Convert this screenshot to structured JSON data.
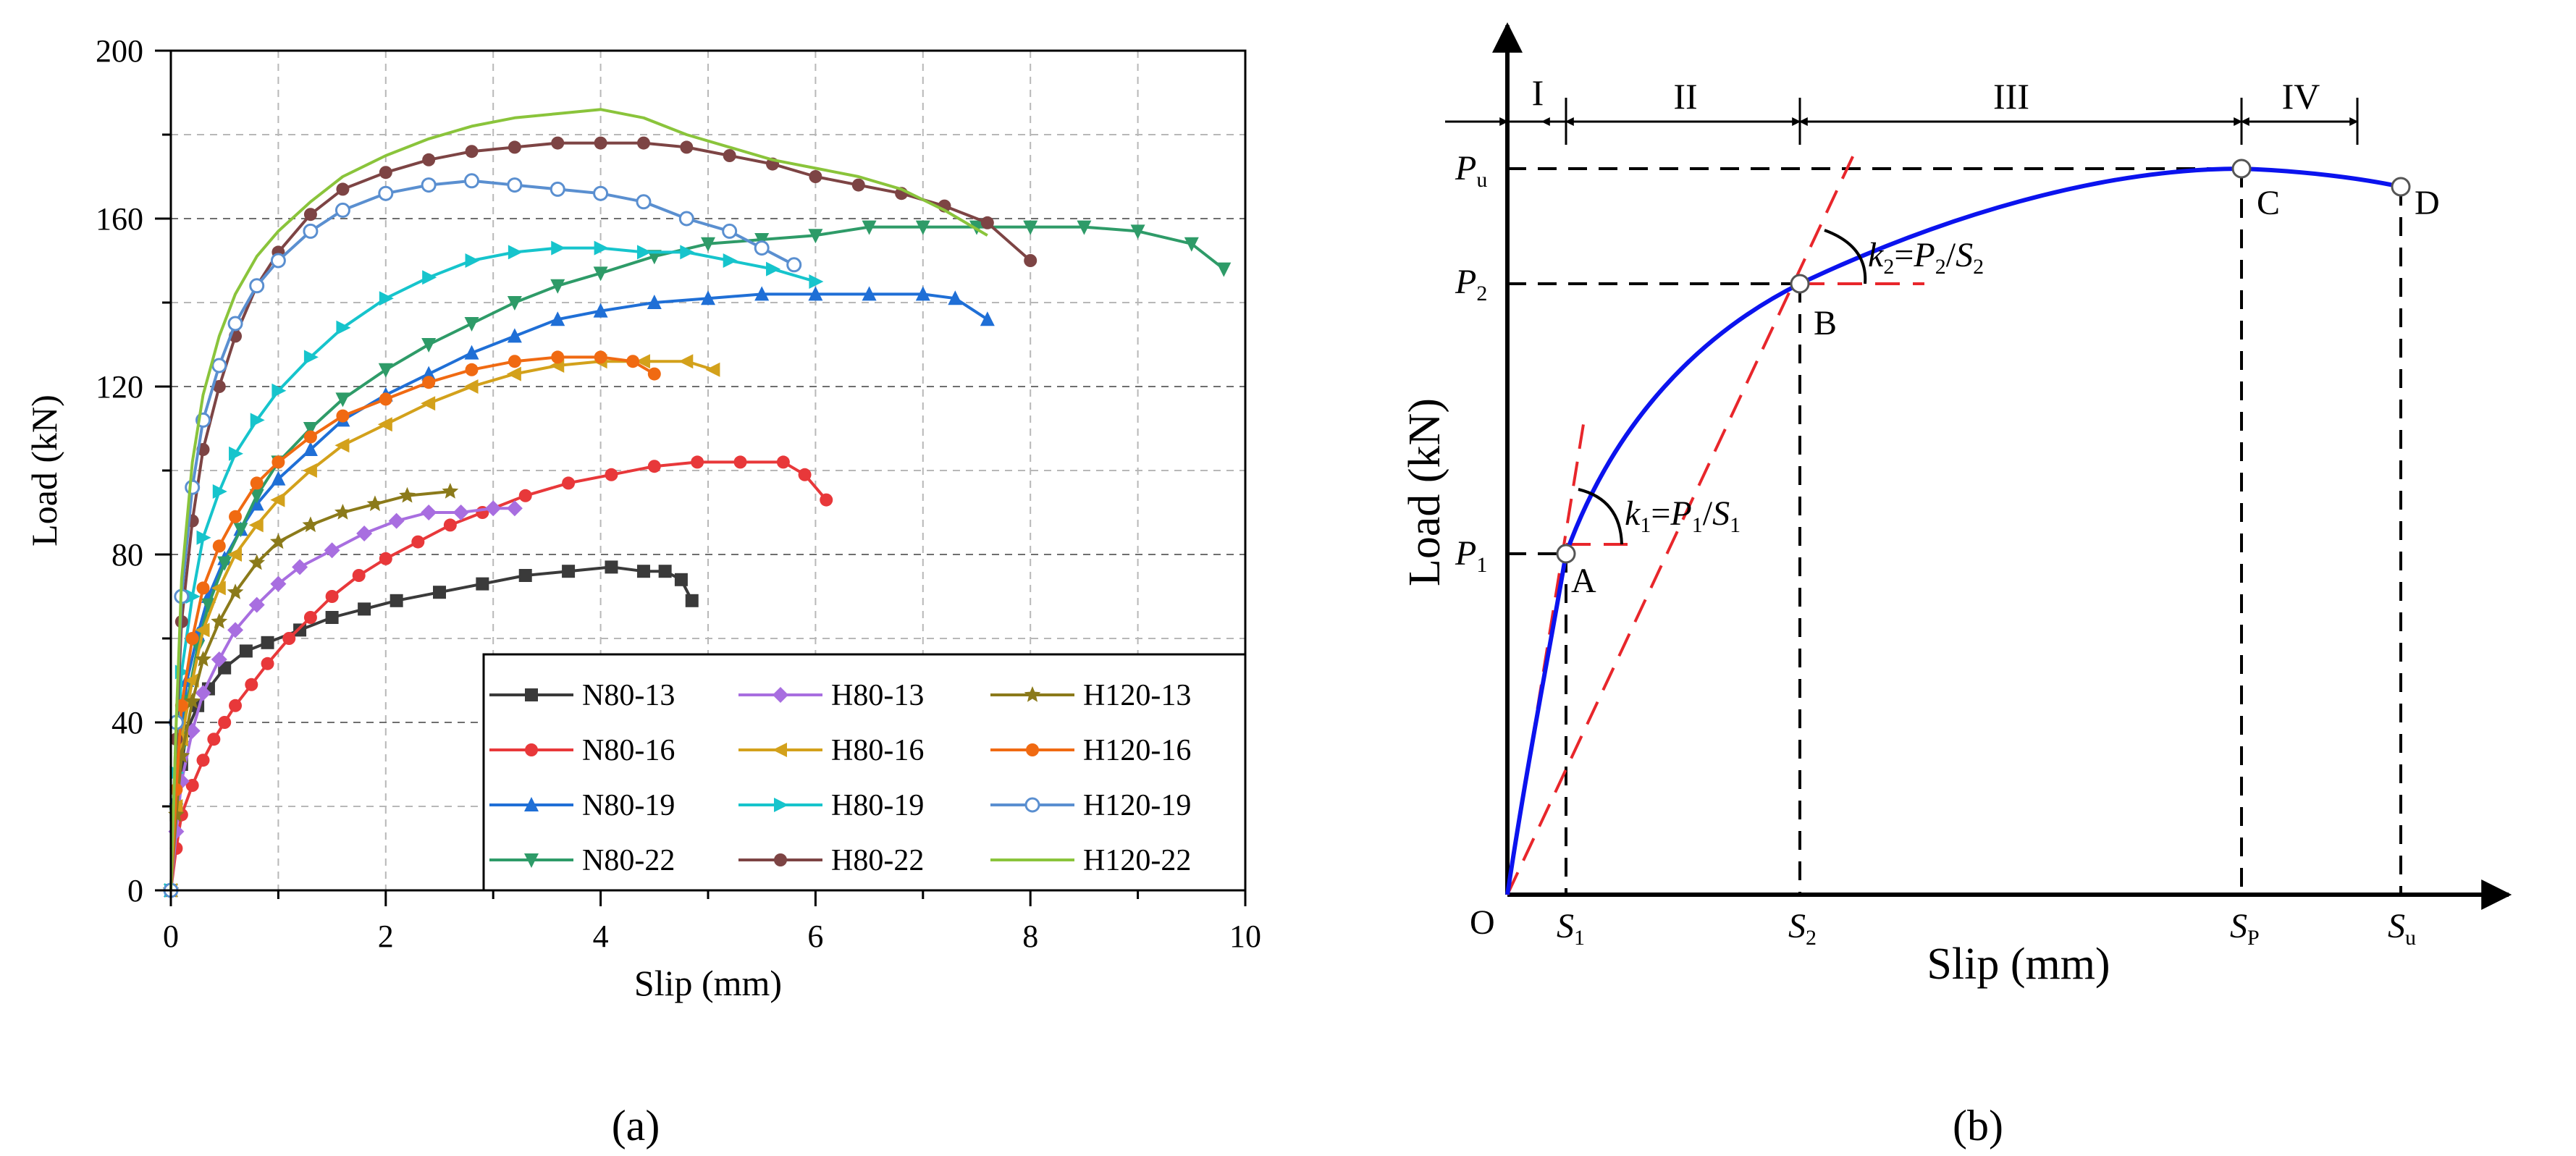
{
  "chart_data": [
    {
      "panel": "a",
      "type": "line",
      "panel_label": "(a)",
      "xlabel": "Slip (mm)",
      "ylabel": "Load (kN)",
      "xlim": [
        0,
        10
      ],
      "ylim": [
        0,
        200
      ],
      "xticks": [
        0,
        2,
        4,
        6,
        8,
        10
      ],
      "yticks": [
        0,
        40,
        80,
        120,
        160,
        200
      ],
      "grid": true,
      "legend_position": "bottom-right",
      "series": [
        {
          "name": "N80-13",
          "color": "#3a3a3a",
          "marker": "square",
          "x": [
            0,
            0.05,
            0.1,
            0.15,
            0.25,
            0.35,
            0.5,
            0.7,
            0.9,
            1.2,
            1.5,
            1.8,
            2.1,
            2.5,
            2.9,
            3.3,
            3.7,
            4.1,
            4.4,
            4.6,
            4.75,
            4.85
          ],
          "y": [
            0,
            18,
            30,
            38,
            44,
            48,
            53,
            57,
            59,
            62,
            65,
            67,
            69,
            71,
            73,
            75,
            76,
            77,
            76,
            76,
            74,
            69
          ]
        },
        {
          "name": "N80-16",
          "color": "#e8383a",
          "marker": "circle",
          "x": [
            0,
            0.05,
            0.1,
            0.2,
            0.3,
            0.4,
            0.5,
            0.6,
            0.75,
            0.9,
            1.1,
            1.3,
            1.5,
            1.75,
            2.0,
            2.3,
            2.6,
            2.9,
            3.3,
            3.7,
            4.1,
            4.5,
            4.9,
            5.3,
            5.7,
            5.9,
            6.1
          ],
          "y": [
            0,
            10,
            18,
            25,
            31,
            36,
            40,
            44,
            49,
            54,
            60,
            65,
            70,
            75,
            79,
            83,
            87,
            90,
            94,
            97,
            99,
            101,
            102,
            102,
            102,
            99,
            93
          ]
        },
        {
          "name": "N80-19",
          "color": "#1f6fd6",
          "marker": "triangle-up",
          "x": [
            0,
            0.05,
            0.1,
            0.15,
            0.25,
            0.35,
            0.5,
            0.65,
            0.8,
            1.0,
            1.3,
            1.6,
            2.0,
            2.4,
            2.8,
            3.2,
            3.6,
            4.0,
            4.5,
            5.0,
            5.5,
            6.0,
            6.5,
            7.0,
            7.3,
            7.6
          ],
          "y": [
            0,
            22,
            38,
            50,
            61,
            70,
            79,
            86,
            92,
            98,
            105,
            112,
            118,
            123,
            128,
            132,
            136,
            138,
            140,
            141,
            142,
            142,
            142,
            142,
            141,
            136
          ]
        },
        {
          "name": "N80-22",
          "color": "#2e9b68",
          "marker": "triangle-down",
          "x": [
            0,
            0.05,
            0.1,
            0.15,
            0.25,
            0.35,
            0.5,
            0.65,
            0.8,
            1.0,
            1.3,
            1.6,
            2.0,
            2.4,
            2.8,
            3.2,
            3.6,
            4.0,
            4.5,
            5.0,
            5.5,
            6.0,
            6.5,
            7.0,
            7.5,
            8.0,
            8.5,
            9.0,
            9.5,
            9.8
          ],
          "y": [
            0,
            18,
            34,
            45,
            58,
            68,
            78,
            86,
            94,
            102,
            110,
            117,
            124,
            130,
            135,
            140,
            144,
            147,
            151,
            154,
            155,
            156,
            158,
            158,
            158,
            158,
            158,
            157,
            154,
            148
          ]
        },
        {
          "name": "H80-13",
          "color": "#a86ee0",
          "marker": "diamond",
          "x": [
            0,
            0.05,
            0.1,
            0.2,
            0.3,
            0.45,
            0.6,
            0.8,
            1.0,
            1.2,
            1.5,
            1.8,
            2.1,
            2.4,
            2.7,
            3.0,
            3.2
          ],
          "y": [
            0,
            14,
            26,
            38,
            47,
            55,
            62,
            68,
            73,
            77,
            81,
            85,
            88,
            90,
            90,
            91,
            91
          ]
        },
        {
          "name": "H80-16",
          "color": "#d3a11b",
          "marker": "triangle-left",
          "x": [
            0,
            0.05,
            0.1,
            0.2,
            0.3,
            0.45,
            0.6,
            0.8,
            1.0,
            1.3,
            1.6,
            2.0,
            2.4,
            2.8,
            3.2,
            3.6,
            4.0,
            4.4,
            4.8,
            5.05
          ],
          "y": [
            0,
            20,
            36,
            50,
            62,
            72,
            80,
            87,
            93,
            100,
            106,
            111,
            116,
            120,
            123,
            125,
            126,
            126,
            126,
            124
          ]
        },
        {
          "name": "H80-19",
          "color": "#16c4cc",
          "marker": "triangle-right",
          "x": [
            0,
            0.05,
            0.1,
            0.2,
            0.3,
            0.45,
            0.6,
            0.8,
            1.0,
            1.3,
            1.6,
            2.0,
            2.4,
            2.8,
            3.2,
            3.6,
            4.0,
            4.4,
            4.8,
            5.2,
            5.6,
            6.0
          ],
          "y": [
            0,
            28,
            52,
            70,
            84,
            95,
            104,
            112,
            119,
            127,
            134,
            141,
            146,
            150,
            152,
            153,
            153,
            152,
            152,
            150,
            148,
            145
          ]
        },
        {
          "name": "H80-22",
          "color": "#7d4444",
          "marker": "circle",
          "x": [
            0,
            0.05,
            0.1,
            0.2,
            0.3,
            0.45,
            0.6,
            0.8,
            1.0,
            1.3,
            1.6,
            2.0,
            2.4,
            2.8,
            3.2,
            3.6,
            4.0,
            4.4,
            4.8,
            5.2,
            5.6,
            6.0,
            6.4,
            6.8,
            7.2,
            7.6,
            8.0
          ],
          "y": [
            0,
            36,
            64,
            88,
            105,
            120,
            132,
            144,
            152,
            161,
            167,
            171,
            174,
            176,
            177,
            178,
            178,
            178,
            177,
            175,
            173,
            170,
            168,
            166,
            163,
            159,
            150
          ]
        },
        {
          "name": "H120-13",
          "color": "#8b7a1a",
          "marker": "star",
          "x": [
            0,
            0.05,
            0.1,
            0.2,
            0.3,
            0.45,
            0.6,
            0.8,
            1.0,
            1.3,
            1.6,
            1.9,
            2.2,
            2.6
          ],
          "y": [
            0,
            18,
            32,
            45,
            55,
            64,
            71,
            78,
            83,
            87,
            90,
            92,
            94,
            95
          ]
        },
        {
          "name": "H120-16",
          "color": "#f06a12",
          "marker": "circle",
          "x": [
            0,
            0.05,
            0.1,
            0.2,
            0.3,
            0.45,
            0.6,
            0.8,
            1.0,
            1.3,
            1.6,
            2.0,
            2.4,
            2.8,
            3.2,
            3.6,
            4.0,
            4.3,
            4.5
          ],
          "y": [
            0,
            24,
            44,
            60,
            72,
            82,
            89,
            97,
            102,
            108,
            113,
            117,
            121,
            124,
            126,
            127,
            127,
            126,
            123
          ]
        },
        {
          "name": "H120-19",
          "color": "#5a8fd0",
          "marker": "circle-open",
          "x": [
            0,
            0.05,
            0.1,
            0.2,
            0.3,
            0.45,
            0.6,
            0.8,
            1.0,
            1.3,
            1.6,
            2.0,
            2.4,
            2.8,
            3.2,
            3.6,
            4.0,
            4.4,
            4.8,
            5.2,
            5.5,
            5.8
          ],
          "y": [
            0,
            40,
            70,
            96,
            112,
            125,
            135,
            144,
            150,
            157,
            162,
            166,
            168,
            169,
            168,
            167,
            166,
            164,
            160,
            157,
            153,
            149
          ]
        },
        {
          "name": "H120-22",
          "color": "#8ac43b",
          "marker": "none",
          "x": [
            0,
            0.05,
            0.1,
            0.2,
            0.3,
            0.45,
            0.6,
            0.8,
            1.0,
            1.3,
            1.6,
            2.0,
            2.4,
            2.8,
            3.2,
            3.6,
            4.0,
            4.4,
            4.8,
            5.2,
            5.6,
            6.0,
            6.4,
            6.8,
            7.2,
            7.6
          ],
          "y": [
            0,
            40,
            74,
            102,
            118,
            132,
            142,
            151,
            157,
            164,
            170,
            175,
            179,
            182,
            184,
            185,
            186,
            184,
            180,
            177,
            174,
            172,
            170,
            167,
            162,
            156
          ]
        }
      ]
    },
    {
      "panel": "b",
      "type": "line",
      "panel_label": "(b)",
      "xlabel": "Slip (mm)",
      "ylabel": "Load (kN)",
      "origin_label": "O",
      "curve_color": "#0b13ee",
      "secant_color": "#e8262b",
      "x_points": [
        {
          "label": "S",
          "sub": "1"
        },
        {
          "label": "S",
          "sub": "2"
        },
        {
          "label": "S",
          "sub": "P"
        },
        {
          "label": "S",
          "sub": "u"
        }
      ],
      "y_points": [
        {
          "label": "P",
          "sub": "1"
        },
        {
          "label": "P",
          "sub": "2"
        },
        {
          "label": "P",
          "sub": "u"
        }
      ],
      "key_points": [
        "A",
        "B",
        "C",
        "D"
      ],
      "regions": [
        "I",
        "II",
        "III",
        "IV"
      ],
      "annotations": [
        {
          "k": "k",
          "ksub": "1",
          "eq": "=",
          "p": "P",
          "psub": "1",
          "slash": "/",
          "s": "S",
          "ssub": "1"
        },
        {
          "k": "k",
          "ksub": "2",
          "eq": "=",
          "p": "P",
          "psub": "2",
          "slash": "/",
          "s": "S",
          "ssub": "2"
        }
      ]
    }
  ]
}
